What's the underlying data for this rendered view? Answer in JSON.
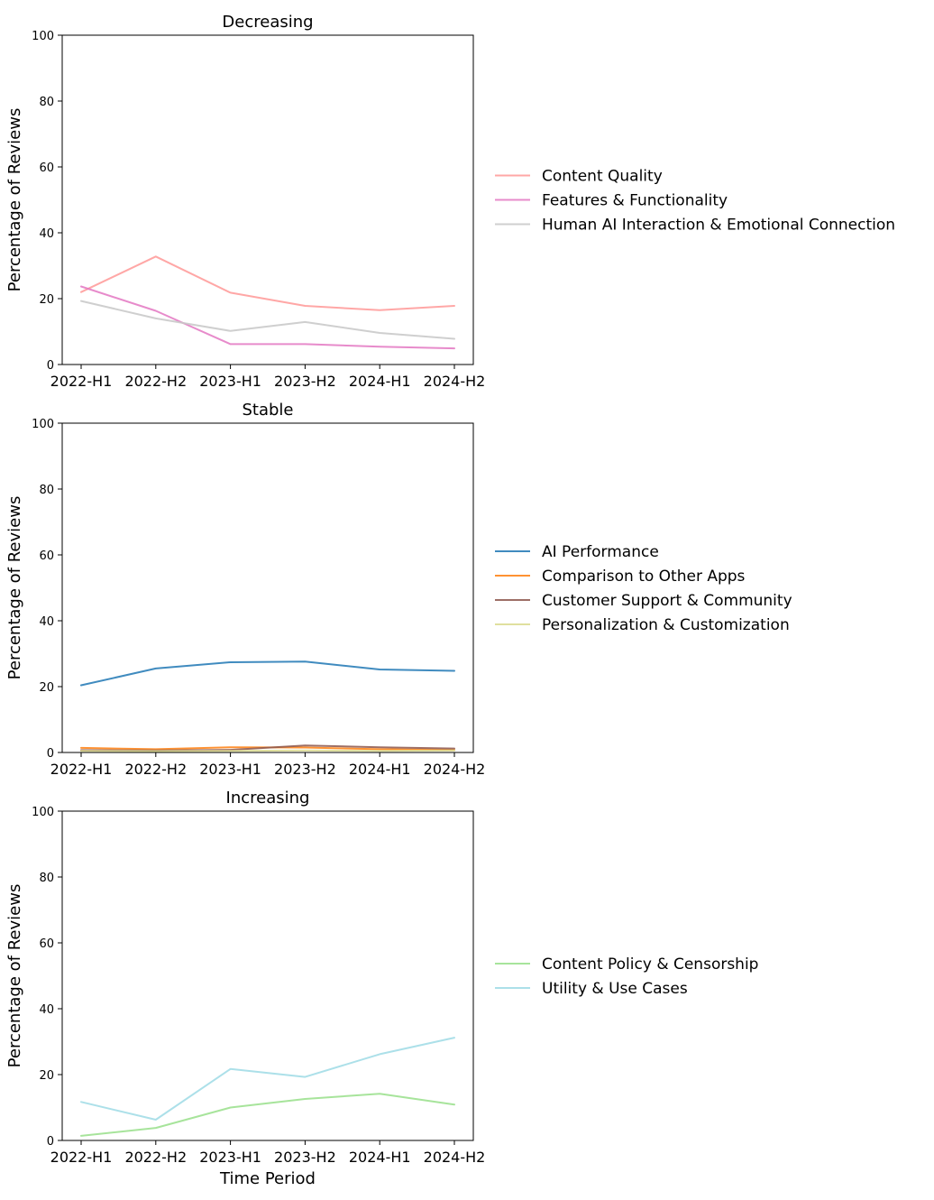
{
  "chart_data": [
    {
      "type": "line",
      "title": "Decreasing",
      "xlabel": "",
      "ylabel": "Percentage of Reviews",
      "ylim": [
        0,
        100
      ],
      "yticks": [
        0,
        20,
        40,
        60,
        80,
        100
      ],
      "categories": [
        "2022-H1",
        "2022-H2",
        "2023-H1",
        "2023-H2",
        "2024-H1",
        "2024-H2"
      ],
      "legend_position": "right",
      "series": [
        {
          "name": "Content Quality",
          "color": "#ff9896",
          "values": [
            22.0,
            32.8,
            21.8,
            17.8,
            16.5,
            17.8
          ]
        },
        {
          "name": "Features & Functionality",
          "color": "#e377c2",
          "values": [
            23.7,
            16.3,
            6.2,
            6.2,
            5.4,
            4.9
          ]
        },
        {
          "name": "Human AI Interaction & Emotional Connection",
          "color": "#c7c7c7",
          "values": [
            19.3,
            14.0,
            10.2,
            12.9,
            9.6,
            7.8
          ]
        }
      ]
    },
    {
      "type": "line",
      "title": "Stable",
      "xlabel": "",
      "ylabel": "Percentage of Reviews",
      "ylim": [
        0,
        100
      ],
      "yticks": [
        0,
        20,
        40,
        60,
        80,
        100
      ],
      "categories": [
        "2022-H1",
        "2022-H2",
        "2023-H1",
        "2023-H2",
        "2024-H1",
        "2024-H2"
      ],
      "legend_position": "right",
      "series": [
        {
          "name": "AI Performance",
          "color": "#1f77b4",
          "values": [
            20.4,
            25.5,
            27.4,
            27.6,
            25.2,
            24.8
          ]
        },
        {
          "name": "Comparison to Other Apps",
          "color": "#ff7f0e",
          "values": [
            1.4,
            1.0,
            1.6,
            1.5,
            1.0,
            0.8
          ]
        },
        {
          "name": "Customer Support & Community",
          "color": "#8c564b",
          "values": [
            0.7,
            0.6,
            0.8,
            2.1,
            1.6,
            1.2
          ]
        },
        {
          "name": "Personalization & Customization",
          "color": "#dbdb8d",
          "values": [
            0.5,
            0.4,
            0.5,
            0.6,
            0.5,
            0.6
          ]
        }
      ]
    },
    {
      "type": "line",
      "title": "Increasing",
      "xlabel": "Time Period",
      "ylabel": "Percentage of Reviews",
      "ylim": [
        0,
        100
      ],
      "yticks": [
        0,
        20,
        40,
        60,
        80,
        100
      ],
      "categories": [
        "2022-H1",
        "2022-H2",
        "2023-H1",
        "2023-H2",
        "2024-H1",
        "2024-H2"
      ],
      "legend_position": "right",
      "series": [
        {
          "name": "Content Policy & Censorship",
          "color": "#98df8a",
          "values": [
            1.4,
            3.8,
            10.0,
            12.6,
            14.2,
            10.9
          ]
        },
        {
          "name": "Utility & Use Cases",
          "color": "#9edae5",
          "values": [
            11.7,
            6.3,
            21.7,
            19.3,
            26.2,
            31.2
          ]
        }
      ]
    }
  ]
}
